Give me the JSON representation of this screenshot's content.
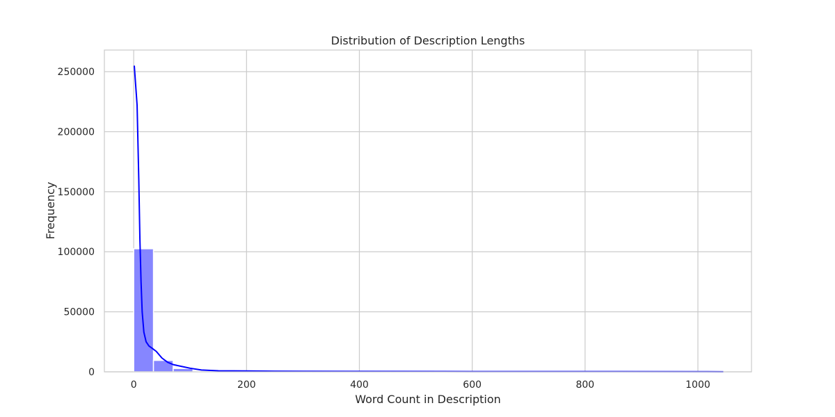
{
  "chart_data": {
    "type": "bar",
    "title": "Distribution of Description Lengths",
    "xlabel": "Word Count in Description",
    "ylabel": "Frequency",
    "xlim": [
      -52,
      1095
    ],
    "ylim": [
      0,
      268000
    ],
    "x_ticks": [
      0,
      200,
      400,
      600,
      800,
      1000
    ],
    "y_ticks": [
      0,
      50000,
      100000,
      150000,
      200000,
      250000
    ],
    "x_tick_labels": [
      "0",
      "200",
      "400",
      "600",
      "800",
      "1000"
    ],
    "y_tick_labels": [
      "0",
      "50000",
      "100000",
      "150000",
      "200000",
      "250000"
    ],
    "grid": true,
    "histogram": {
      "bin_edges": [
        0,
        35,
        70,
        105,
        140,
        175,
        210,
        245,
        280,
        315,
        350,
        385,
        420,
        455,
        490,
        525,
        560,
        595,
        630,
        665,
        700,
        735,
        770,
        805,
        840,
        875,
        910,
        945,
        980,
        1015,
        1050
      ],
      "counts": [
        102500,
        9500,
        2800,
        800,
        400,
        250,
        150,
        120,
        90,
        70,
        60,
        50,
        40,
        35,
        30,
        25,
        22,
        20,
        18,
        16,
        14,
        12,
        10,
        9,
        8,
        7,
        6,
        5,
        4,
        3
      ],
      "bar_color": "#8080ff",
      "bar_edge_color": "#ffffff"
    },
    "kde": {
      "x": [
        1,
        6,
        9,
        11,
        13,
        15,
        18,
        22,
        27,
        33,
        40,
        50,
        60,
        70,
        85,
        100,
        120,
        150,
        200,
        250,
        300,
        400,
        600,
        800,
        1000,
        1045
      ],
      "y": [
        255000,
        222000,
        160000,
        110000,
        75000,
        50000,
        33000,
        25000,
        21500,
        19500,
        17000,
        11500,
        8000,
        6000,
        4500,
        3000,
        1500,
        900,
        700,
        500,
        450,
        350,
        250,
        200,
        150,
        100
      ],
      "color": "#0000ff"
    }
  }
}
